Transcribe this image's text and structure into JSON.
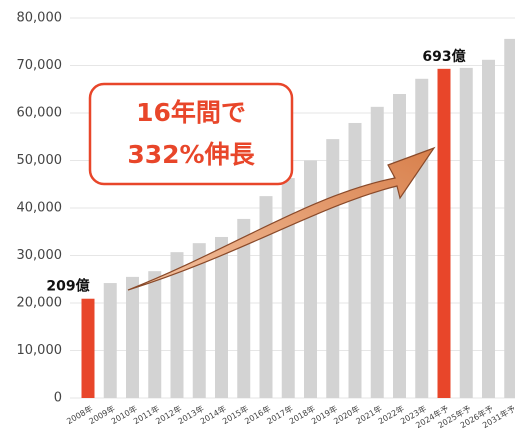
{
  "chart_data": {
    "type": "bar",
    "categories": [
      "2008年",
      "2009年",
      "2010年",
      "2011年",
      "2012年",
      "2013年",
      "2014年",
      "2015年",
      "2016年",
      "2017年",
      "2018年",
      "2019年",
      "2020年",
      "2021年",
      "2022年",
      "2023年",
      "2024年予",
      "2025年予",
      "2026年予",
      "2031年予"
    ],
    "values": [
      20900,
      24200,
      25500,
      26700,
      30700,
      32600,
      33900,
      37700,
      42500,
      46300,
      50000,
      54500,
      57900,
      61300,
      64000,
      67200,
      69300,
      69500,
      71200,
      75600
    ],
    "colors": [
      "#e8462a",
      "#d3d3d3",
      "#d3d3d3",
      "#d3d3d3",
      "#d3d3d3",
      "#d3d3d3",
      "#d3d3d3",
      "#d3d3d3",
      "#d3d3d3",
      "#d3d3d3",
      "#d3d3d3",
      "#d3d3d3",
      "#d3d3d3",
      "#d3d3d3",
      "#d3d3d3",
      "#d3d3d3",
      "#e8462a",
      "#d3d3d3",
      "#d3d3d3",
      "#d3d3d3"
    ],
    "value_labels": [
      "209億",
      null,
      null,
      null,
      null,
      null,
      null,
      null,
      null,
      null,
      null,
      null,
      null,
      null,
      null,
      null,
      "693億",
      null,
      null,
      null
    ],
    "ylim": [
      0,
      80000
    ],
    "yticks": [
      {
        "value": 0,
        "label": "0"
      },
      {
        "value": 10000,
        "label": "10,000"
      },
      {
        "value": 20000,
        "label": "20,000"
      },
      {
        "value": 30000,
        "label": "30,000"
      },
      {
        "value": 40000,
        "label": "40,000"
      },
      {
        "value": 50000,
        "label": "50,000"
      },
      {
        "value": 60000,
        "label": "60,000"
      },
      {
        "value": 70000,
        "label": "70,000"
      },
      {
        "value": 80000,
        "label": "80,000"
      }
    ],
    "grid": true,
    "annotation": [
      "16年間で",
      "332%伸長"
    ]
  }
}
